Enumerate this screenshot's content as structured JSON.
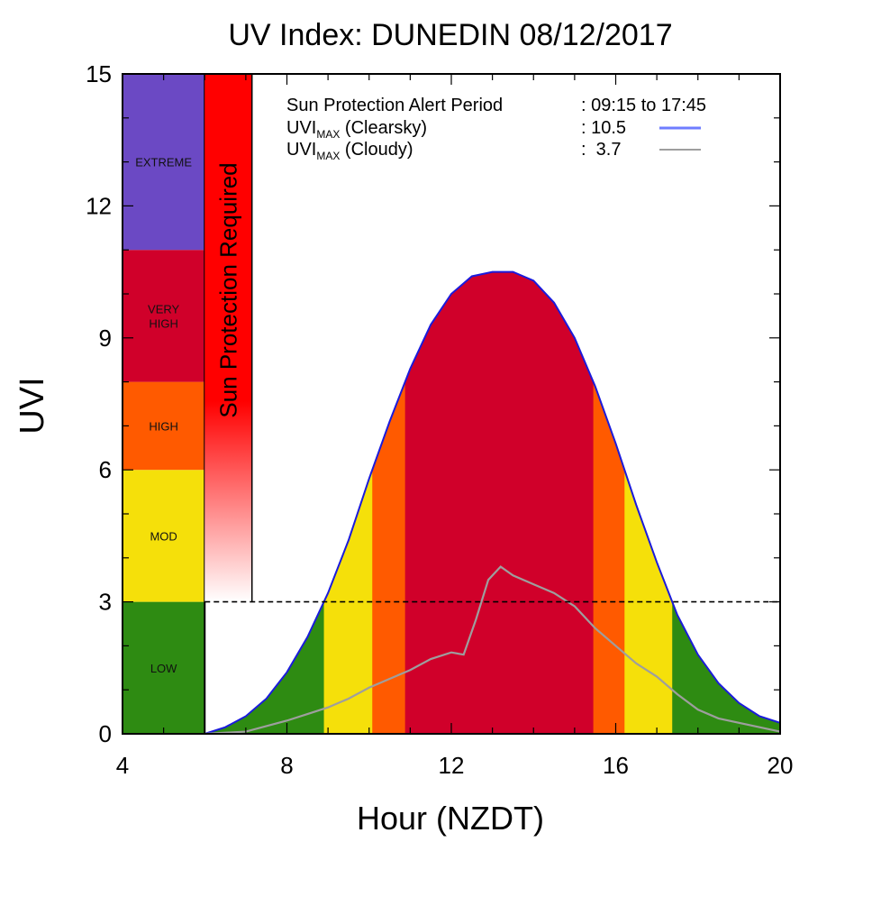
{
  "chart_data": {
    "type": "area",
    "title": "UV Index: DUNEDIN 08/12/2017",
    "xlabel": "Hour (NZDT)",
    "ylabel": "UVI",
    "xlim": [
      4,
      20
    ],
    "ylim": [
      0,
      15
    ],
    "xticks": [
      4,
      8,
      12,
      16,
      20
    ],
    "yticks": [
      0,
      3,
      6,
      9,
      12,
      15
    ],
    "threshold": 3,
    "categories": [
      {
        "label": "LOW",
        "from": 0,
        "to": 3,
        "color": "#2e8b12"
      },
      {
        "label": "MOD",
        "from": 3,
        "to": 6,
        "color": "#f5e00a"
      },
      {
        "label": "HIGH",
        "from": 6,
        "to": 8,
        "color": "#ff5a00"
      },
      {
        "label": "VERY HIGH",
        "from": 8,
        "to": 11,
        "color": "#d0002a"
      },
      {
        "label": "EXTREME",
        "from": 11,
        "to": 15,
        "color": "#6b49c4"
      }
    ],
    "protection_bar_label": "Sun Protection Required",
    "protection_bar_color": "#ff0000",
    "legend": {
      "alert_label": "Sun Protection Alert Period",
      "alert_value": ": 09:15 to 17:45",
      "clearsky_prefix": "UVI",
      "clearsky_sub": "MAX",
      "clearsky_suffix": " (Clearsky)",
      "clearsky_value": ": 10.5",
      "cloudy_prefix": "UVI",
      "cloudy_sub": "MAX",
      "cloudy_suffix": " (Cloudy)",
      "cloudy_value": ":  3.7"
    },
    "series": [
      {
        "name": "UVI MAX (Clearsky)",
        "color": "#1a1adc",
        "legend_color": "#6f7dff",
        "x": [
          6.0,
          6.5,
          7.0,
          7.5,
          8.0,
          8.5,
          9.0,
          9.5,
          10.0,
          10.5,
          11.0,
          11.5,
          12.0,
          12.5,
          13.0,
          13.5,
          14.0,
          14.5,
          15.0,
          15.5,
          16.0,
          16.5,
          17.0,
          17.5,
          18.0,
          18.5,
          19.0,
          19.5,
          20.0
        ],
        "values": [
          0.0,
          0.15,
          0.4,
          0.8,
          1.4,
          2.2,
          3.2,
          4.4,
          5.8,
          7.1,
          8.3,
          9.3,
          10.0,
          10.4,
          10.5,
          10.5,
          10.3,
          9.8,
          9.0,
          7.9,
          6.6,
          5.2,
          3.9,
          2.7,
          1.8,
          1.15,
          0.7,
          0.4,
          0.25
        ]
      },
      {
        "name": "UVI MAX (Cloudy)",
        "color": "#9e9e9e",
        "legend_color": "#9e9e9e",
        "x": [
          6.0,
          7.0,
          8.0,
          8.5,
          9.0,
          9.5,
          10.0,
          10.5,
          11.0,
          11.5,
          12.0,
          12.3,
          12.6,
          12.9,
          13.2,
          13.5,
          14.0,
          14.5,
          15.0,
          15.5,
          16.0,
          16.5,
          17.0,
          17.5,
          18.0,
          18.5,
          19.0,
          19.5,
          20.0
        ],
        "values": [
          0.0,
          0.05,
          0.3,
          0.45,
          0.6,
          0.8,
          1.05,
          1.25,
          1.45,
          1.7,
          1.85,
          1.8,
          2.6,
          3.5,
          3.8,
          3.6,
          3.4,
          3.2,
          2.9,
          2.4,
          2.0,
          1.6,
          1.3,
          0.9,
          0.55,
          0.35,
          0.25,
          0.15,
          0.05
        ]
      }
    ]
  }
}
